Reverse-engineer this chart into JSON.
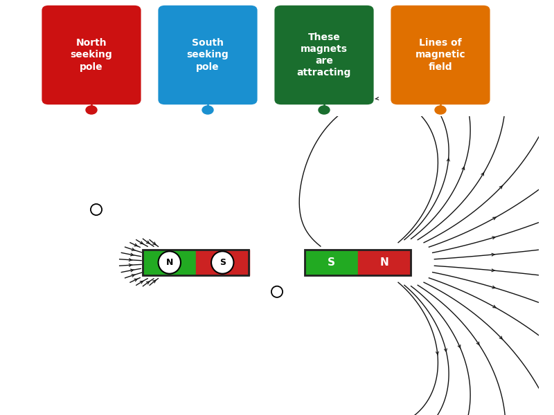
{
  "bg_color": "#ffffff",
  "legend_boxes": [
    {
      "label": "North\nseeking\npole",
      "color": "#cc1111"
    },
    {
      "label": "South\nseeking\npole",
      "color": "#1a90d0"
    },
    {
      "label": "These\nmagnets\nare\nattracting",
      "color": "#1a6e2e"
    },
    {
      "label": "Lines of\nmagnetic\nfield",
      "color": "#e07000"
    }
  ],
  "connector_colors": [
    "#cc1111",
    "#1a90d0",
    "#1a6e2e",
    "#e07000"
  ],
  "field_color": "#111111",
  "magnet_green": "#22aa22",
  "magnet_red": "#cc2222",
  "magnet_border": "#222222"
}
